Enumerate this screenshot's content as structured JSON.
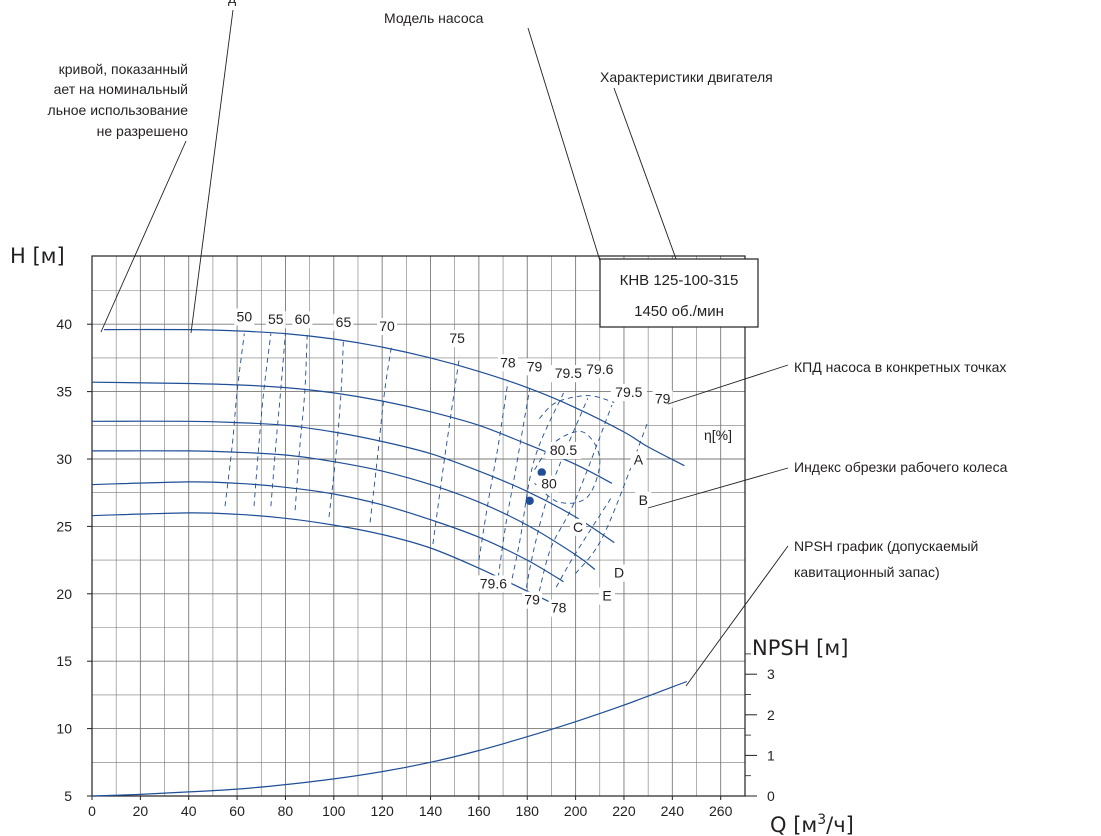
{
  "chart_data": {
    "type": "line",
    "x_ticks": [
      0,
      20,
      40,
      60,
      80,
      100,
      120,
      140,
      160,
      180,
      200,
      220,
      240,
      260
    ],
    "xlim": [
      0,
      270
    ],
    "y_ticks": [
      5,
      10,
      15,
      20,
      25,
      30,
      35,
      40
    ],
    "ylim": [
      5,
      43
    ],
    "npsh_ticks": [
      0,
      1,
      2,
      3
    ],
    "npsh_ylim": [
      0,
      3.6
    ],
    "grid": true,
    "series": [
      {
        "name": "A",
        "x": [
          5,
          40,
          60,
          80,
          100,
          120,
          140,
          160,
          180,
          200,
          220,
          230,
          245
        ],
        "y": [
          39.6,
          39.6,
          39.5,
          39.3,
          38.9,
          38.3,
          37.5,
          36.5,
          35.3,
          33.8,
          32,
          30.9,
          29.5
        ]
      },
      {
        "name": "B",
        "x": [
          0,
          40,
          60,
          80,
          100,
          120,
          140,
          160,
          180,
          200,
          215
        ],
        "y": [
          35.7,
          35.6,
          35.5,
          35.3,
          34.9,
          34.3,
          33.5,
          32.5,
          31.1,
          29.6,
          28.2
        ]
      },
      {
        "name": "C",
        "x": [
          0,
          40,
          60,
          80,
          100,
          120,
          140,
          160,
          180,
          200,
          216
        ],
        "y": [
          32.8,
          32.8,
          32.7,
          32.5,
          32,
          31.3,
          30.4,
          29.1,
          27.6,
          25.7,
          23.8
        ]
      },
      {
        "name": "D",
        "x": [
          0,
          40,
          60,
          80,
          100,
          120,
          140,
          160,
          180,
          200,
          208
        ],
        "y": [
          30.6,
          30.6,
          30.5,
          30.3,
          29.8,
          29.1,
          28.1,
          26.8,
          25.1,
          22.9,
          21.8
        ]
      },
      {
        "name": "E",
        "x": [
          0,
          40,
          60,
          80,
          100,
          120,
          140,
          160,
          180,
          195
        ],
        "y": [
          28.1,
          28.3,
          28.2,
          27.9,
          27.4,
          26.6,
          25.5,
          24.2,
          22.5,
          20.9
        ]
      },
      {
        "name": "",
        "x": [
          0,
          40,
          60,
          80,
          100,
          120,
          140,
          160,
          180,
          195
        ],
        "y": [
          25.8,
          26,
          25.9,
          25.6,
          25.1,
          24.4,
          23.4,
          21.9,
          20.2,
          18.9
        ]
      },
      {
        "name": "NPSH",
        "axis": "npsh",
        "x": [
          0,
          20,
          40,
          60,
          80,
          100,
          120,
          140,
          160,
          180,
          200,
          220,
          246
        ],
        "y": [
          0,
          0.04,
          0.1,
          0.17,
          0.28,
          0.42,
          0.6,
          0.83,
          1.12,
          1.46,
          1.83,
          2.24,
          2.82
        ]
      }
    ],
    "efficiency_labels": [
      {
        "text": "50",
        "x": 63,
        "y": 40.2
      },
      {
        "text": "55",
        "x": 76,
        "y": 40.0
      },
      {
        "text": "60",
        "x": 87,
        "y": 40.0
      },
      {
        "text": "65",
        "x": 104,
        "y": 39.8
      },
      {
        "text": "70",
        "x": 122,
        "y": 39.5
      },
      {
        "text": "75",
        "x": 151,
        "y": 38.6
      },
      {
        "text": "78",
        "x": 172,
        "y": 36.8
      },
      {
        "text": "79",
        "x": 183,
        "y": 36.5
      },
      {
        "text": "79.5",
        "x": 197,
        "y": 36.0
      },
      {
        "text": "79.6",
        "x": 210,
        "y": 36.3
      },
      {
        "text": "79.5",
        "x": 222,
        "y": 34.6
      },
      {
        "text": "79",
        "x": 236,
        "y": 34.1
      },
      {
        "text": "80.5",
        "x": 195,
        "y": 30.3
      },
      {
        "text": "80",
        "x": 189,
        "y": 27.8
      },
      {
        "text": "79.6",
        "x": 166,
        "y": 20.4
      },
      {
        "text": "79",
        "x": 182,
        "y": 19.2
      },
      {
        "text": "78",
        "x": 193,
        "y": 18.6
      }
    ],
    "efficiency_points": [
      [
        186,
        29
      ],
      [
        181,
        26.9
      ]
    ],
    "efficiency_contours": [
      [
        [
          55,
          26.5
        ],
        [
          58,
          31
        ],
        [
          60,
          35
        ],
        [
          63,
          39.3
        ]
      ],
      [
        [
          67,
          26.5
        ],
        [
          69,
          31
        ],
        [
          71,
          35
        ],
        [
          74,
          39.3
        ]
      ],
      [
        [
          74,
          26.5
        ],
        [
          76,
          31
        ],
        [
          78,
          35
        ],
        [
          80,
          39.3
        ]
      ],
      [
        [
          84,
          26.2
        ],
        [
          86,
          31
        ],
        [
          88,
          35
        ],
        [
          89,
          39.2
        ]
      ],
      [
        [
          98,
          25.7
        ],
        [
          101,
          30.5
        ],
        [
          103,
          35
        ],
        [
          104,
          39
        ]
      ],
      [
        [
          115,
          25.3
        ],
        [
          118,
          30
        ],
        [
          121,
          35
        ],
        [
          124,
          38.5
        ]
      ],
      [
        [
          141,
          23.7
        ],
        [
          145,
          29
        ],
        [
          149,
          34
        ],
        [
          152,
          37.6
        ]
      ],
      [
        [
          160,
          22.5
        ],
        [
          164,
          27
        ],
        [
          168,
          31
        ],
        [
          172,
          35.7
        ]
      ],
      [
        [
          168,
          21.2
        ],
        [
          171,
          25
        ],
        [
          175,
          29
        ],
        [
          181,
          35.2
        ]
      ],
      [
        [
          173,
          20.5
        ],
        [
          177,
          24
        ],
        [
          183,
          30
        ],
        [
          195,
          34.9
        ]
      ],
      [
        [
          179,
          19.8
        ],
        [
          183,
          23.5
        ],
        [
          190,
          28
        ],
        [
          205,
          34.5
        ]
      ],
      [
        [
          185,
          20.2
        ],
        [
          190,
          23.5
        ],
        [
          200,
          27
        ],
        [
          215,
          34
        ]
      ],
      [
        [
          192,
          20.5
        ],
        [
          200,
          23
        ],
        [
          215,
          27.2
        ]
      ],
      [
        [
          200,
          21.5
        ],
        [
          212,
          24.5
        ],
        [
          230,
          32.8
        ]
      ],
      [
        [
          183,
          29.2
        ],
        [
          191,
          31.2
        ],
        [
          203,
          32
        ],
        [
          210,
          30
        ],
        [
          205,
          27.2
        ],
        [
          193,
          26.8
        ],
        [
          183,
          28.2
        ]
      ],
      [
        [
          185,
          33
        ],
        [
          192,
          34.2
        ],
        [
          205,
          34.7
        ],
        [
          216,
          34.2
        ]
      ]
    ],
    "curve_labels": [
      {
        "text": "A",
        "x": 226,
        "y": 29.6
      },
      {
        "text": "B",
        "x": 228,
        "y": 26.6
      },
      {
        "text": "C",
        "x": 201,
        "y": 24.6
      },
      {
        "text": "D",
        "x": 218,
        "y": 21.2
      },
      {
        "text": "E",
        "x": 213,
        "y": 19.5
      }
    ],
    "xlabel": "Q [м³/ч]",
    "ylabel": "H [м]",
    "y2label": "NPSH [м]",
    "eta_label": "η[%]",
    "pump_box": {
      "model": "КНВ 125-100-315",
      "speed": "1450 об./мин"
    }
  },
  "annotations": {
    "top_partial": "д",
    "warning_line1": "кривой, показанный",
    "warning_line2": "ает на номинальный",
    "warning_line3": "льное использование",
    "warning_line4": "не разрешено",
    "pump_model": "Модель насоса",
    "motor": "Характеристики двигателя",
    "efficiency_points": "КПД насоса в конкретных точках",
    "impeller_index": "Индекс обрезки рабочего колеса",
    "npsh_line1": "NPSH график (допускаемый",
    "npsh_line2": "кавитационный запас)"
  },
  "colors": {
    "curve": "#1f4e96",
    "grid": "#7a7a7a",
    "text": "#231f20",
    "point": "#1f4e96"
  }
}
